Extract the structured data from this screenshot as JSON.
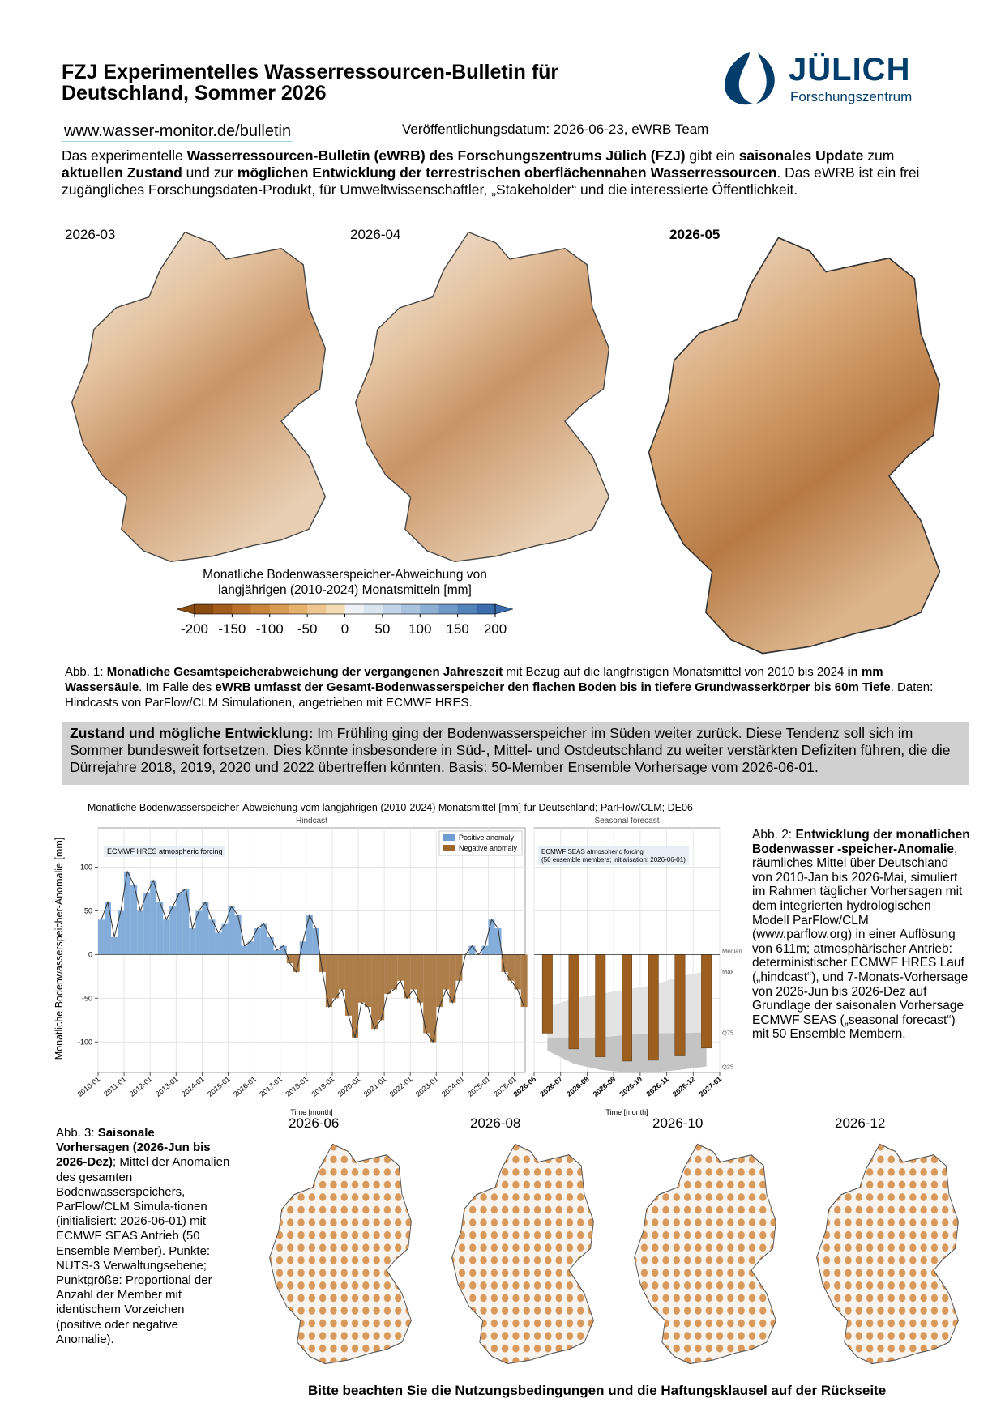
{
  "header": {
    "title": "FZJ Experimentelles Wasserressourcen-Bulletin für Deutschland, Sommer 2026",
    "url": "www.wasser-monitor.de/bulletin",
    "published": "Veröffentlichungsdatum: 2026-06-23, eWRB Team"
  },
  "logo": {
    "name": "JÜLICH",
    "subtitle": "Forschungszentrum"
  },
  "intro": [
    {
      "text": "Das experimentelle ",
      "bold": false
    },
    {
      "text": "Wasserressourcen-Bulletin (eWRB) des Forschungszentrums Jülich (FZJ)",
      "bold": true
    },
    {
      "text": " gibt ein ",
      "bold": false
    },
    {
      "text": "saisonales Update",
      "bold": true
    },
    {
      "text": " zum ",
      "bold": false
    },
    {
      "text": "aktuellen Zustand",
      "bold": true
    },
    {
      "text": " und zur ",
      "bold": false
    },
    {
      "text": "möglichen Entwicklung der terrestrischen oberflächennahen Wasserressourcen",
      "bold": true
    },
    {
      "text": ". Das eWRB ist ein frei zugängliches Forschungsdaten-Produkt, für Umweltwissenschaftler, „Stakeholder“ und die interessierte Öffentlichkeit.",
      "bold": false
    }
  ],
  "maps_past": {
    "labels": [
      "2026-03",
      "2026-04",
      "2026-05"
    ]
  },
  "colorbar": {
    "label": "Monatliche Bodenwasserspeicher-Abweichung von langjährigen (2010-2024) Monatsmitteln [mm]",
    "ticks": [
      -200,
      -150,
      -100,
      -50,
      0,
      50,
      100,
      150,
      200
    ],
    "colors": [
      "#8a4a10",
      "#a35c1c",
      "#b8702a",
      "#c9853c",
      "#d99a52",
      "#e6b06d",
      "#efc68f",
      "#f6dcb6",
      "#eef1f5",
      "#dae5f0",
      "#c2d5e8",
      "#a8c3de",
      "#8cafd3",
      "#6f99c7",
      "#5283bb",
      "#3a6cae"
    ]
  },
  "caption1": [
    {
      "text": "Abb. 1: ",
      "bold": false
    },
    {
      "text": "Monatliche Gesamtspeicherabweichung der vergangenen Jahreszeit",
      "bold": true
    },
    {
      "text": " mit Bezug auf die langfristigen Monatsmittel von 2010 bis 2024 ",
      "bold": false
    },
    {
      "text": "in mm Wassersäule",
      "bold": true
    },
    {
      "text": ". Im Falle des ",
      "bold": false
    },
    {
      "text": "eWRB umfasst der Gesamt-Bodenwasserspeicher den flachen Boden bis in tiefere Grundwasserkörper bis 60m Tiefe",
      "bold": true
    },
    {
      "text": ". Daten: Hindcasts von ParFlow/CLM Simulationen, angetrieben mit ECMWF HRES.",
      "bold": false
    }
  ],
  "status": [
    {
      "text": "Zustand und mögliche Entwicklung:",
      "bold": true
    },
    {
      "text": " Im Frühling ging der Bodenwasserspeicher im Süden weiter zurück. Diese Tendenz soll sich im Sommer bundesweit fortsetzen. Dies könnte insbesondere in Süd-, Mittel- und Ostdeutschland zu weiter verstärkten Defiziten führen, die die Dürrejahre 2018, 2019, 2020 und 2022 übertreffen könnten. Basis: 50-Member Ensemble Vorhersage vom 2026-06-01.",
      "bold": false
    }
  ],
  "chart_data": {
    "type": "area",
    "title": "Monatliche Bodenwasserspeicher-Abweichung vom langjährigen (2010-2024) Monatsmittel [mm] für Deutschland; ParFlow/CLM; DE06",
    "ylabel": "Monatliche Bodenwasserspeicher-Anomalie [mm]",
    "ylim": [
      -135,
      145
    ],
    "yticks": [
      -100,
      -50,
      0,
      50,
      100
    ],
    "grid": true,
    "series": [
      {
        "name": "Positive anomaly",
        "color": "#6f9fd2"
      },
      {
        "name": "Negative anomaly",
        "color": "#a0672a"
      }
    ],
    "hindcast": {
      "title": "Hindcast",
      "note": "ECMWF HRES atmospheric forcing",
      "xlabel": "Time [month]",
      "xlim": [
        "2010-01",
        "2026-06"
      ],
      "xticks": [
        "2010-01",
        "2011-01",
        "2012-01",
        "2013-01",
        "2014-01",
        "2015-01",
        "2016-01",
        "2017-01",
        "2018-01",
        "2019-01",
        "2020-01",
        "2021-01",
        "2022-01",
        "2023-01",
        "2024-01",
        "2025-01",
        "2026-01"
      ],
      "x": [
        "2010-01",
        "2010-04",
        "2010-07",
        "2010-10",
        "2011-01",
        "2011-04",
        "2011-07",
        "2011-10",
        "2012-01",
        "2012-04",
        "2012-07",
        "2012-10",
        "2013-01",
        "2013-04",
        "2013-07",
        "2013-10",
        "2014-01",
        "2014-04",
        "2014-07",
        "2014-10",
        "2015-01",
        "2015-04",
        "2015-07",
        "2015-10",
        "2016-01",
        "2016-04",
        "2016-07",
        "2016-10",
        "2017-01",
        "2017-04",
        "2017-07",
        "2017-10",
        "2018-01",
        "2018-04",
        "2018-07",
        "2018-10",
        "2019-01",
        "2019-04",
        "2019-07",
        "2019-10",
        "2020-01",
        "2020-04",
        "2020-07",
        "2020-10",
        "2021-01",
        "2021-04",
        "2021-07",
        "2021-10",
        "2022-01",
        "2022-04",
        "2022-07",
        "2022-10",
        "2023-01",
        "2023-04",
        "2023-07",
        "2023-10",
        "2024-01",
        "2024-04",
        "2024-07",
        "2024-10",
        "2025-01",
        "2025-04",
        "2025-07",
        "2025-10",
        "2026-01",
        "2026-04"
      ],
      "values": [
        40,
        60,
        20,
        50,
        95,
        80,
        50,
        70,
        85,
        60,
        40,
        55,
        70,
        75,
        30,
        50,
        60,
        40,
        25,
        35,
        55,
        45,
        10,
        15,
        30,
        35,
        20,
        5,
        10,
        -10,
        -20,
        15,
        45,
        30,
        -20,
        -60,
        -50,
        -40,
        -70,
        -95,
        -55,
        -60,
        -85,
        -75,
        -45,
        -40,
        -30,
        -50,
        -40,
        -55,
        -90,
        -100,
        -60,
        -40,
        -55,
        -30,
        0,
        10,
        0,
        10,
        40,
        30,
        -20,
        -30,
        -40,
        -60
      ]
    },
    "forecast": {
      "title": "Seasonal forecast",
      "note": [
        "ECMWF SEAS atmospheric forcing",
        "(50 ensemble members; initialisation: 2026-06-01)"
      ],
      "xlabel": "Time [month]",
      "xlim": [
        "2026-06",
        "2027-01"
      ],
      "xticks": [
        "2026-06",
        "2026-07",
        "2026-08",
        "2026-09",
        "2026-10",
        "2026-11",
        "2026-12",
        "2027-01"
      ],
      "x": [
        "2026-06",
        "2026-07",
        "2026-08",
        "2026-09",
        "2026-10",
        "2026-11",
        "2026-12"
      ],
      "median": {
        "name": "Median",
        "values": [
          -90,
          -108,
          -117,
          -122,
          -121,
          -116,
          -107
        ]
      },
      "max": {
        "name": "Max",
        "values": [
          -60,
          -50,
          -45,
          -40,
          -35,
          -25,
          -19
        ]
      },
      "q75": {
        "name": "Q75",
        "values": [
          -95,
          -95,
          -95,
          -92,
          -90,
          -90,
          -89
        ]
      },
      "q25": {
        "name": "Q25",
        "values": [
          -110,
          -125,
          -132,
          -135,
          -135,
          -132,
          -128
        ]
      },
      "color": "#9c5f1f"
    }
  },
  "caption2": [
    {
      "text": "Abb. 2: ",
      "bold": false
    },
    {
      "text": "Entwicklung der monatlichen Bodenwasser -speicher-Anomalie",
      "bold": true
    },
    {
      "text": ", räumliches Mittel über Deutschland von 2010-Jan bis 2026-Mai, simuliert im Rahmen täglicher Vorhersagen mit dem integrierten hydrologischen Modell ParFlow/CLM (www.parflow.org) in einer Auflösung von 611m; atmosphärischer Antrieb: deterministischer ECMWF HRES Lauf („hindcast“), und 7-Monats-Vorhersage von 2026-Jun bis 2026-Dez auf Grundlage der saisonalen Vorhersage ECMWF SEAS („seasonal forecast“) mit 50 Ensemble Membern.",
      "bold": false
    }
  ],
  "caption3": [
    {
      "text": "Abb. 3: ",
      "bold": false
    },
    {
      "text": "Saisonale Vorhersagen (2026-Jun bis 2026-Dez)",
      "bold": true
    },
    {
      "text": "; Mittel der Anomalien des gesamten Bodenwasserspeichers, ParFlow/CLM Simula-tionen (initialisiert: 2026-06-01) mit ECMWF SEAS Antrieb (50 Ensemble Member). Punkte: NUTS-3 Verwaltungsebene; Punktgröße: Proportional der Anzahl der Member mit identischem Vorzeichen (positive oder negative Anomalie).",
      "bold": false
    }
  ],
  "maps_forecast": {
    "labels": [
      "2026-06",
      "2026-08",
      "2026-10",
      "2026-12"
    ]
  },
  "footer": "Bitte beachten Sie die Nutzungsbedingungen und die Haftungsklausel auf der Rückseite"
}
